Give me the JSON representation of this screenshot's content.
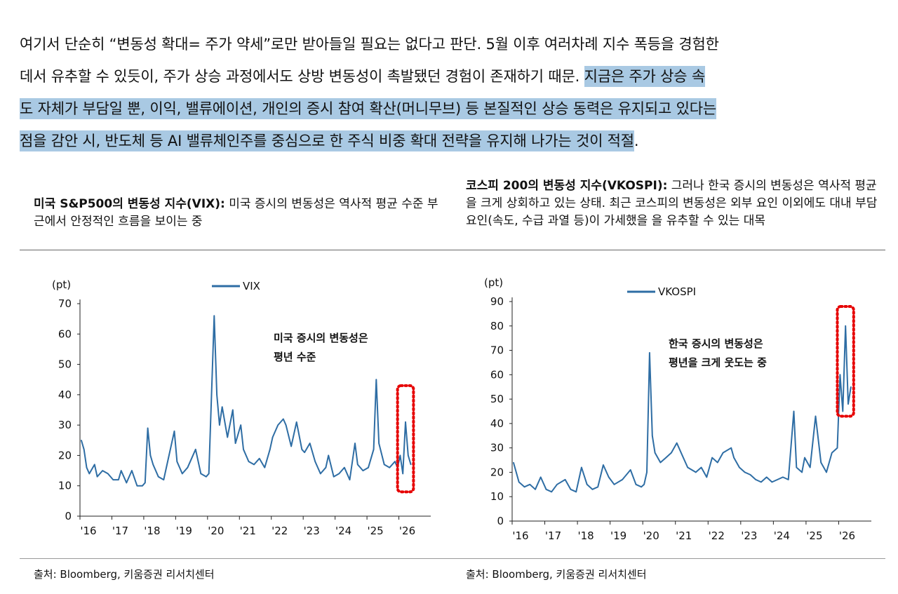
{
  "paragraph": {
    "line1": "여기서 단순히 “변동성 확대= 주가 약세”로만 받아들일 필요는 없다고 판단. 5월 이후 여러차례 지수 폭등을 경험한",
    "line2_plain": "데서 유추할 수 있듯이, 주가 상승 과정에서도 상방 변동성이 촉발됐던 경험이 존재하기 때문.",
    "line2_highlight": "지금은 주가 상승 속",
    "line3_highlight": "도 자체가 부담일 뿐, 이익, 밸류에이션, 개인의 증시 참여 확산(머니무브) 등 본질적인 상승 동력은 유지되고 있다는",
    "line4_highlight": "점을 감안 시, 반도체 등 AI 밸류체인주를 중심으로 한 주식 비중 확대 전략을 유지해 나가는 것이 적절",
    "line4_end": "."
  },
  "highlight_color": "#a9c9e3",
  "left_panel": {
    "title_bold": "미국 S&P500의 변동성 지수(VIX):",
    "title_rest": " 미국 증시의 변동성은 역사적 평균 수준 부근에서 안정적인 흐름을 보이는 중",
    "source": "출처: Bloomberg, 키움증권 리서치센터"
  },
  "right_panel": {
    "title_bold": "코스피 200의 변동성 지수(VKOSPI):",
    "title_rest": " 그러나 한국 증시의 변동성은 역사적 평균을 크게 상회하고 있는 상태. 최근 코스피의 변동성은 외부 요인 이외에도 대내 부담 요인(속도, 수급 과열 등)이 가세했을 을 유추할 수 있는 대목",
    "source": "출처: Bloomberg, 키움증권 리서치센터"
  },
  "chart_data": [
    {
      "type": "line",
      "series": [
        {
          "name": "VIX",
          "color": "#2e6da4"
        }
      ],
      "ylabel": "(pt)",
      "ylim": [
        0,
        70
      ],
      "yticks": [
        0,
        10,
        20,
        30,
        40,
        50,
        60,
        70
      ],
      "xlim": [
        "2016-01",
        "2026-12"
      ],
      "xticks": [
        "'16",
        "'17",
        "'18",
        "'19",
        "'20",
        "'21",
        "'22",
        "'23",
        "'24",
        "'25",
        "'26"
      ],
      "annotation": [
        "미국 증시의 변동성은",
        "평년 수준"
      ],
      "highlight_box": {
        "x_range": [
          "2025-12",
          "2026-06"
        ],
        "y_range": [
          8,
          43
        ],
        "color": "#e60000"
      },
      "x": [
        "2016-01",
        "2016-02",
        "2016-03",
        "2016-04",
        "2016-06",
        "2016-07",
        "2016-09",
        "2016-11",
        "2017-01",
        "2017-03",
        "2017-04",
        "2017-06",
        "2017-08",
        "2017-10",
        "2017-12",
        "2018-01",
        "2018-02",
        "2018-03",
        "2018-04",
        "2018-06",
        "2018-08",
        "2018-10",
        "2018-12",
        "2019-01",
        "2019-03",
        "2019-05",
        "2019-08",
        "2019-10",
        "2019-12",
        "2020-01",
        "2020-02",
        "2020-03",
        "2020-04",
        "2020-05",
        "2020-06",
        "2020-08",
        "2020-10",
        "2020-11",
        "2021-01",
        "2021-02",
        "2021-04",
        "2021-06",
        "2021-08",
        "2021-10",
        "2021-12",
        "2022-01",
        "2022-03",
        "2022-05",
        "2022-06",
        "2022-08",
        "2022-10",
        "2022-12",
        "2023-01",
        "2023-03",
        "2023-05",
        "2023-07",
        "2023-09",
        "2023-10",
        "2023-12",
        "2024-02",
        "2024-04",
        "2024-06",
        "2024-08",
        "2024-09",
        "2024-11",
        "2025-01",
        "2025-03",
        "2025-04",
        "2025-05",
        "2025-07",
        "2025-09",
        "2025-11",
        "2025-12",
        "2026-01",
        "2026-02",
        "2026-03",
        "2026-04",
        "2026-05"
      ],
      "values": [
        25,
        22,
        16,
        14,
        17,
        13,
        15,
        14,
        12,
        12,
        15,
        11,
        15,
        10,
        10,
        11,
        29,
        20,
        17,
        13,
        12,
        20,
        28,
        18,
        14,
        16,
        22,
        14,
        13,
        14,
        40,
        66,
        40,
        30,
        36,
        26,
        35,
        24,
        30,
        22,
        18,
        17,
        19,
        16,
        22,
        26,
        30,
        32,
        30,
        23,
        31,
        22,
        21,
        24,
        18,
        14,
        16,
        20,
        13,
        14,
        16,
        12,
        24,
        17,
        15,
        16,
        22,
        45,
        24,
        17,
        16,
        18,
        16,
        20,
        14,
        31,
        20,
        17
      ]
    },
    {
      "type": "line",
      "series": [
        {
          "name": "VKOSPI",
          "color": "#2e6da4"
        }
      ],
      "ylabel": "(pt)",
      "ylim": [
        0,
        90
      ],
      "yticks": [
        0,
        10,
        20,
        30,
        40,
        50,
        60,
        70,
        80,
        90
      ],
      "xlim": [
        "2016-01",
        "2026-12"
      ],
      "xticks": [
        "'16",
        "'17",
        "'18",
        "'19",
        "'20",
        "'21",
        "'22",
        "'23",
        "'24",
        "'25",
        "'26"
      ],
      "annotation": [
        "한국 증시의 변동성은",
        "평년을 크게 웃도는 중"
      ],
      "highlight_box": {
        "x_range": [
          "2025-12",
          "2026-06"
        ],
        "y_range": [
          43,
          88
        ],
        "color": "#e60000"
      },
      "x": [
        "2016-01",
        "2016-02",
        "2016-03",
        "2016-05",
        "2016-07",
        "2016-09",
        "2016-11",
        "2017-01",
        "2017-03",
        "2017-05",
        "2017-08",
        "2017-10",
        "2017-12",
        "2018-02",
        "2018-04",
        "2018-06",
        "2018-08",
        "2018-10",
        "2018-12",
        "2019-02",
        "2019-05",
        "2019-08",
        "2019-10",
        "2019-12",
        "2020-01",
        "2020-02",
        "2020-03",
        "2020-04",
        "2020-05",
        "2020-07",
        "2020-09",
        "2020-11",
        "2021-01",
        "2021-03",
        "2021-05",
        "2021-08",
        "2021-10",
        "2021-12",
        "2022-02",
        "2022-04",
        "2022-06",
        "2022-09",
        "2022-10",
        "2022-12",
        "2023-02",
        "2023-04",
        "2023-06",
        "2023-08",
        "2023-10",
        "2023-12",
        "2024-02",
        "2024-04",
        "2024-06",
        "2024-08",
        "2024-09",
        "2024-11",
        "2024-12",
        "2025-02",
        "2025-04",
        "2025-06",
        "2025-08",
        "2025-10",
        "2025-12",
        "2026-01",
        "2026-02",
        "2026-03",
        "2026-04",
        "2026-05"
      ],
      "values": [
        24,
        20,
        16,
        14,
        15,
        13,
        18,
        13,
        12,
        15,
        17,
        13,
        12,
        22,
        15,
        13,
        14,
        23,
        18,
        15,
        17,
        21,
        15,
        14,
        15,
        20,
        69,
        35,
        28,
        24,
        26,
        28,
        32,
        27,
        22,
        20,
        22,
        18,
        26,
        24,
        28,
        30,
        26,
        22,
        20,
        19,
        17,
        16,
        18,
        16,
        17,
        18,
        17,
        45,
        22,
        20,
        26,
        22,
        43,
        24,
        20,
        28,
        30,
        60,
        45,
        80,
        48,
        55
      ]
    }
  ]
}
